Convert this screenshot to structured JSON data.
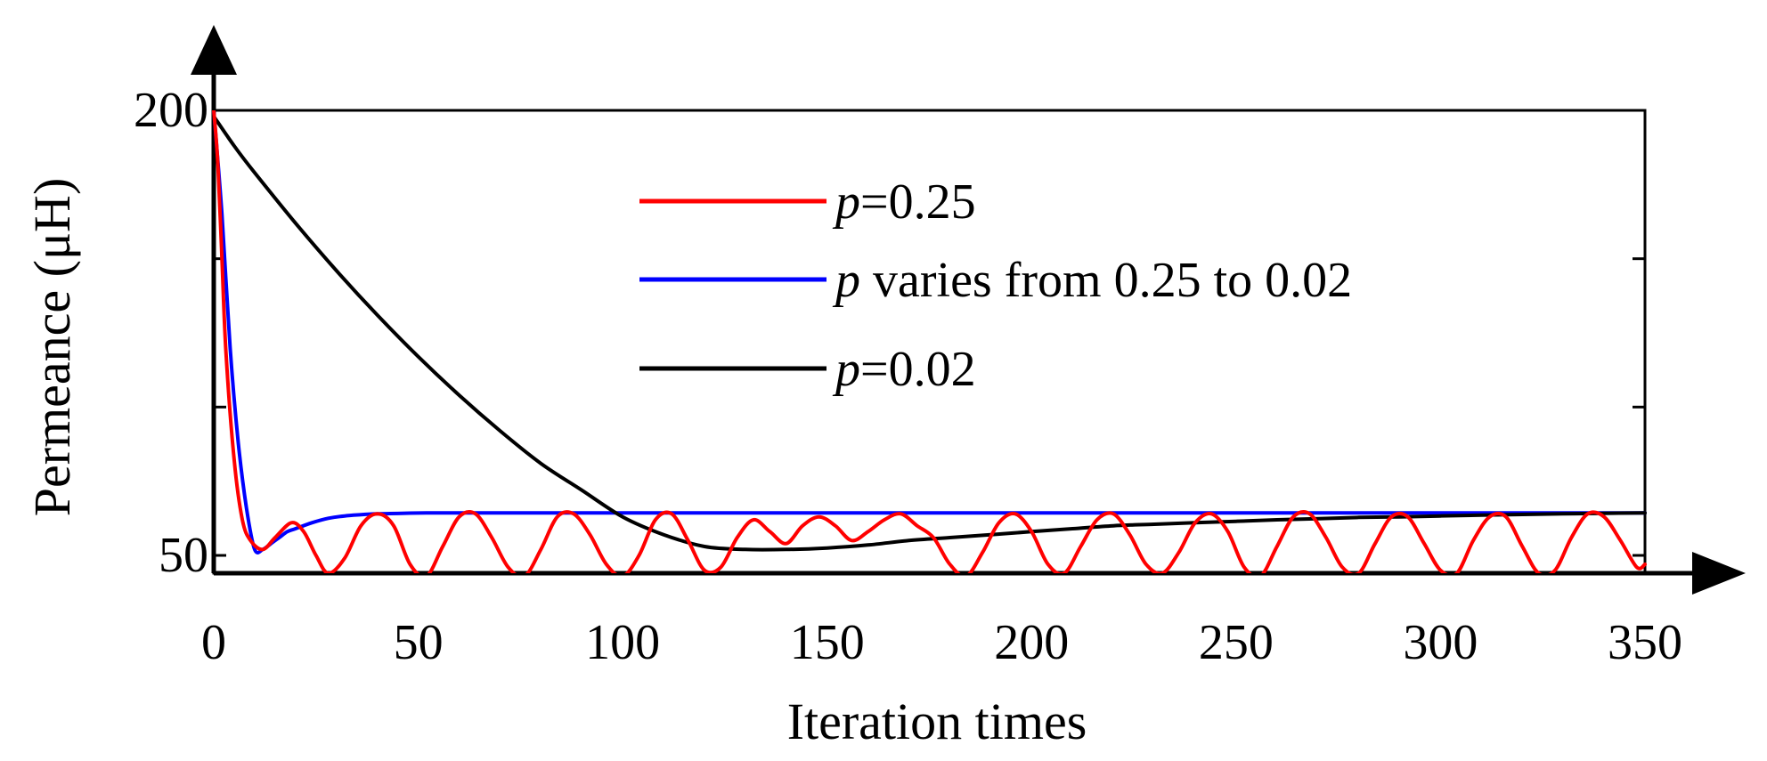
{
  "chart_data": {
    "type": "line",
    "title": "",
    "xlabel": "Iteration times",
    "ylabel": "Permeance (μH)",
    "xlim": [
      0,
      350
    ],
    "ylim": [
      44,
      200
    ],
    "x_ticks": [
      0,
      50,
      100,
      150,
      200,
      250,
      300,
      350
    ],
    "x_tick_labels": [
      "0",
      "50",
      "100",
      "150",
      "200",
      "250",
      "300",
      "350"
    ],
    "y_ticks": [
      50,
      100,
      150,
      200
    ],
    "y_tick_labels": [
      "50",
      "",
      "",
      "200"
    ],
    "legend_position": "top-center",
    "series": [
      {
        "name": "p=0.25",
        "legend_italic": "p",
        "legend_rest": "=0.25",
        "color": "#ff0000",
        "x": [
          0,
          1,
          2,
          3,
          5,
          7,
          9,
          12,
          15,
          19,
          22,
          25,
          28,
          32,
          36,
          40,
          44,
          48,
          52,
          56,
          60,
          64,
          68,
          72,
          76,
          80,
          84,
          88,
          92,
          96,
          100,
          104,
          108,
          112,
          116,
          120,
          124,
          128,
          132,
          136,
          140,
          144,
          148,
          152,
          156,
          160,
          164,
          168,
          172,
          176,
          180,
          184,
          188,
          192,
          196,
          200,
          204,
          208,
          212,
          216,
          220,
          224,
          228,
          232,
          236,
          240,
          244,
          248,
          252,
          256,
          260,
          264,
          268,
          272,
          276,
          280,
          284,
          288,
          292,
          296,
          300,
          304,
          308,
          312,
          316,
          320,
          324,
          328,
          332,
          336,
          340,
          344,
          348,
          350
        ],
        "y": [
          200,
          182,
          150,
          118,
          82,
          62,
          55,
          52,
          56,
          61,
          58,
          50,
          44,
          49,
          60,
          64,
          60,
          47,
          43,
          53,
          63,
          64,
          56,
          46,
          43,
          52,
          63,
          64,
          57,
          47,
          43,
          50,
          62,
          64,
          55,
          45,
          46,
          56,
          62,
          58,
          54,
          60,
          63,
          60,
          55,
          58,
          62,
          64,
          60,
          56,
          47,
          43,
          51,
          61,
          64,
          58,
          47,
          44,
          53,
          62,
          64,
          57,
          47,
          44,
          51,
          61,
          64,
          58,
          46,
          43,
          53,
          63,
          64,
          56,
          46,
          44,
          54,
          63,
          63,
          54,
          45,
          44,
          55,
          63,
          63,
          53,
          44,
          45,
          56,
          64,
          63,
          55,
          46,
          47
        ]
      },
      {
        "name": "p varies from 0.25 to 0.02",
        "legend_italic": "p",
        "legend_rest": " varies from 0.25 to 0.02",
        "color": "#0000ff",
        "x": [
          0,
          2,
          4,
          6,
          8,
          10,
          12,
          14,
          16,
          18,
          20,
          24,
          28,
          32,
          36,
          40,
          46,
          52,
          60,
          70,
          80,
          100,
          150,
          200,
          250,
          300,
          350
        ],
        "y": [
          200,
          165,
          120,
          88,
          66,
          52,
          52,
          54,
          56,
          58,
          59,
          61,
          62.5,
          63.3,
          63.7,
          64,
          64.2,
          64.3,
          64.3,
          64.3,
          64.3,
          64.3,
          64.3,
          64.3,
          64.3,
          64.3,
          64.3
        ]
      },
      {
        "name": "p=0.02",
        "legend_italic": "p",
        "legend_rest": "=0.02",
        "color": "#000000",
        "x": [
          0,
          5,
          10,
          20,
          30,
          40,
          50,
          60,
          70,
          80,
          90,
          100,
          110,
          120,
          130,
          140,
          150,
          160,
          170,
          180,
          190,
          200,
          210,
          220,
          230,
          240,
          250,
          260,
          270,
          280,
          290,
          300,
          310,
          320,
          330,
          340,
          350
        ],
        "y": [
          198,
          188,
          179,
          162,
          146,
          131,
          117,
          104,
          92,
          81,
          72,
          63,
          57,
          53,
          52,
          52,
          52.5,
          53.5,
          55,
          56,
          57,
          58,
          59,
          60,
          60.5,
          61,
          61.5,
          62,
          62.4,
          62.8,
          63,
          63.3,
          63.6,
          63.8,
          64,
          64.2,
          64.3
        ]
      }
    ]
  }
}
